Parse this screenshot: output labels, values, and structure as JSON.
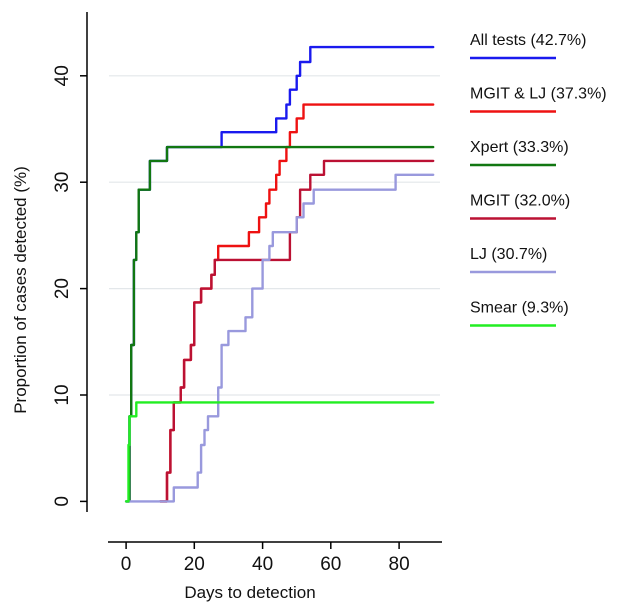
{
  "chart_data": {
    "type": "line",
    "title": "",
    "xlabel": "Days to detection",
    "ylabel": "Proportion of cases detected (%)",
    "xlim": [
      -5,
      92
    ],
    "ylim": [
      -1,
      46
    ],
    "xticks": [
      0,
      20,
      40,
      60,
      80
    ],
    "yticks": [
      0,
      10,
      20,
      30,
      40
    ],
    "grid": "horizontal",
    "legend_position": "right",
    "step": true,
    "series": [
      {
        "name": "All tests (42.7%)",
        "color": "#1a1aee",
        "points": [
          [
            0,
            0
          ],
          [
            1,
            8
          ],
          [
            1.5,
            14.7
          ],
          [
            2.3,
            22.7
          ],
          [
            3,
            25.3
          ],
          [
            3.7,
            29.3
          ],
          [
            5,
            29.3
          ],
          [
            7,
            32
          ],
          [
            10,
            32
          ],
          [
            12,
            33.3
          ],
          [
            27,
            33.3
          ],
          [
            28,
            34.7
          ],
          [
            43,
            34.7
          ],
          [
            44,
            36
          ],
          [
            46,
            36
          ],
          [
            47,
            37.3
          ],
          [
            48,
            38.7
          ],
          [
            49,
            38.7
          ],
          [
            50,
            40
          ],
          [
            51,
            41.3
          ],
          [
            53,
            41.3
          ],
          [
            54,
            42.7
          ],
          [
            90,
            42.7
          ]
        ]
      },
      {
        "name": "MGIT & LJ (37.3%)",
        "color": "#ee1111",
        "points": [
          [
            10,
            0
          ],
          [
            12,
            2.7
          ],
          [
            13,
            6.7
          ],
          [
            14,
            9.3
          ],
          [
            16,
            10.7
          ],
          [
            17,
            13.3
          ],
          [
            19,
            14.7
          ],
          [
            20,
            18.7
          ],
          [
            21,
            18.7
          ],
          [
            22,
            20
          ],
          [
            24,
            20
          ],
          [
            25,
            21.3
          ],
          [
            26,
            22.7
          ],
          [
            27,
            24
          ],
          [
            35,
            24
          ],
          [
            36,
            25.3
          ],
          [
            38,
            25.3
          ],
          [
            39,
            26.7
          ],
          [
            40,
            26.7
          ],
          [
            41,
            28
          ],
          [
            42,
            29.3
          ],
          [
            44,
            30.7
          ],
          [
            45,
            32
          ],
          [
            47,
            33.3
          ],
          [
            48,
            34.7
          ],
          [
            50,
            36
          ],
          [
            52,
            37.3
          ],
          [
            90,
            37.3
          ]
        ]
      },
      {
        "name": "Xpert (33.3%)",
        "color": "#117711",
        "points": [
          [
            0,
            0
          ],
          [
            1,
            8
          ],
          [
            1.5,
            14.7
          ],
          [
            2.3,
            22.7
          ],
          [
            3,
            25.3
          ],
          [
            3.7,
            29.3
          ],
          [
            5,
            29.3
          ],
          [
            7,
            32
          ],
          [
            10,
            32
          ],
          [
            12,
            33.3
          ],
          [
            90,
            33.3
          ]
        ]
      },
      {
        "name": "MGIT (32.0%)",
        "color": "#bb1133",
        "points": [
          [
            10,
            0
          ],
          [
            12,
            2.7
          ],
          [
            13,
            6.7
          ],
          [
            14,
            9.3
          ],
          [
            16,
            10.7
          ],
          [
            17,
            13.3
          ],
          [
            19,
            14.7
          ],
          [
            20,
            18.7
          ],
          [
            21,
            18.7
          ],
          [
            22,
            20
          ],
          [
            24,
            20
          ],
          [
            25,
            21.3
          ],
          [
            26,
            22.7
          ],
          [
            47,
            22.7
          ],
          [
            48,
            25.3
          ],
          [
            50,
            26.7
          ],
          [
            51,
            29.3
          ],
          [
            53,
            29.3
          ],
          [
            54,
            30.7
          ],
          [
            57,
            30.7
          ],
          [
            58,
            32
          ],
          [
            90,
            32
          ]
        ]
      },
      {
        "name": "LJ (30.7%)",
        "color": "#9999dd",
        "points": [
          [
            0,
            0
          ],
          [
            13,
            0
          ],
          [
            14,
            1.3
          ],
          [
            20,
            1.3
          ],
          [
            21,
            2.7
          ],
          [
            22,
            5.3
          ],
          [
            23,
            6.7
          ],
          [
            24,
            8
          ],
          [
            26,
            8
          ],
          [
            27,
            10.7
          ],
          [
            28,
            14.7
          ],
          [
            30,
            16
          ],
          [
            33,
            16
          ],
          [
            35,
            17.3
          ],
          [
            37,
            20
          ],
          [
            39,
            20
          ],
          [
            40,
            22.7
          ],
          [
            42,
            24
          ],
          [
            43,
            25.3
          ],
          [
            49,
            25.3
          ],
          [
            50,
            26.7
          ],
          [
            52,
            28
          ],
          [
            55,
            29.3
          ],
          [
            77,
            29.3
          ],
          [
            79,
            30.7
          ],
          [
            90,
            30.7
          ]
        ]
      },
      {
        "name": "Smear (9.3%)",
        "color": "#22ee22",
        "points": [
          [
            0,
            0
          ],
          [
            0.7,
            5.3
          ],
          [
            1,
            8
          ],
          [
            1.8,
            8
          ],
          [
            3,
            9.3
          ],
          [
            90,
            9.3
          ]
        ]
      }
    ]
  }
}
